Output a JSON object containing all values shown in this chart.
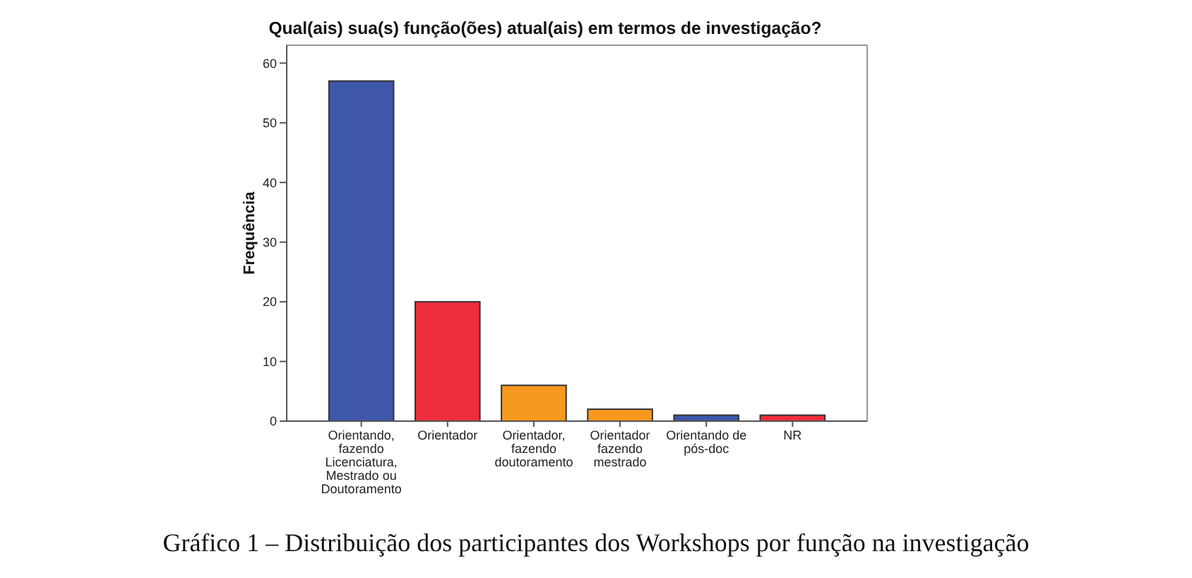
{
  "chart_data": {
    "type": "bar",
    "title": "Qual(ais) sua(s) função(ões) atual(ais) em termos de investigação?",
    "ylabel": "Frequência",
    "categories": [
      "Orientando, fazendo Licenciatura, Mestrado ou Doutoramento",
      "Orientador",
      "Orientador, fazendo doutoramento",
      "Orientador fazendo mestrado",
      "Orientando de pós-doc",
      "NR"
    ],
    "values": [
      57,
      20,
      6,
      2,
      1,
      1
    ],
    "colors": [
      "#3e57a7",
      "#ee2e3c",
      "#f7991e",
      "#f7991e",
      "#3e57a7",
      "#ee2e3c"
    ],
    "ylim": [
      0,
      63
    ],
    "yticks": [
      0,
      10,
      20,
      30,
      40,
      50,
      60
    ],
    "grid": false,
    "annotations": [
      "Gráfico 1 – Distribuição dos participantes dos Workshops por função na investigação"
    ]
  }
}
